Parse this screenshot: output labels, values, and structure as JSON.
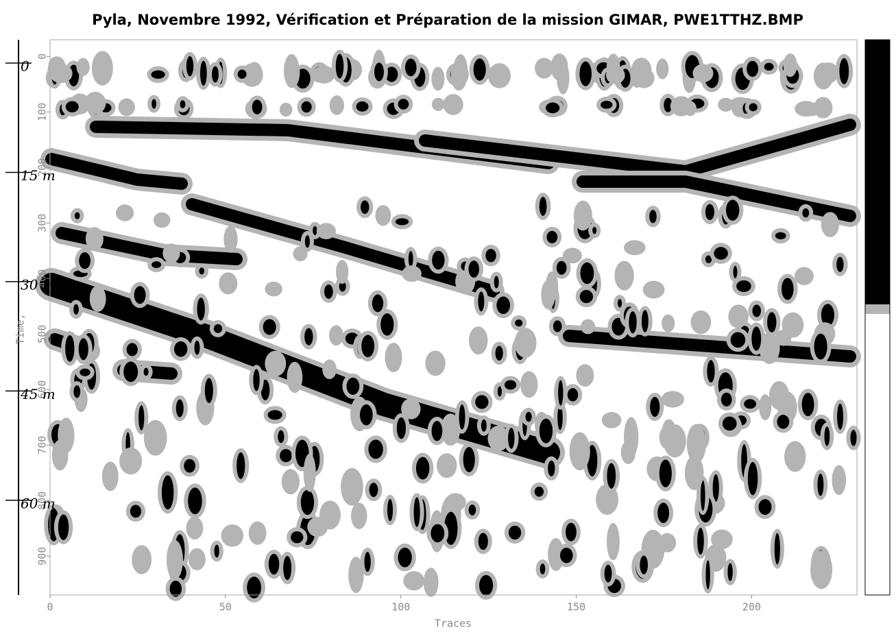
{
  "chart_data": {
    "type": "radargram",
    "title": "Pyla, Novembre 1992, Vérification et Préparation de la mission GIMAR, PWE1TTHZ.BMP",
    "xlabel": "Traces",
    "ylabel": "Time,",
    "xlim": [
      0,
      230
    ],
    "xticks": [
      0,
      50,
      100,
      150,
      200
    ],
    "ylim": [
      -30,
      970
    ],
    "y_inverted": true,
    "yticks": [
      0,
      100,
      200,
      300,
      400,
      500,
      600,
      700,
      800,
      900
    ],
    "y2lim": [
      -3.2,
      73
    ],
    "y2ticks": [
      {
        "value": 0,
        "label": "0"
      },
      {
        "value": 15,
        "label": "15 m"
      },
      {
        "value": 30,
        "label": "30 m"
      },
      {
        "value": 45,
        "label": "45 m"
      },
      {
        "value": 60,
        "label": "60 m"
      }
    ],
    "colors": [
      "#000000",
      "#b4b4b4",
      "#ffffff"
    ]
  }
}
